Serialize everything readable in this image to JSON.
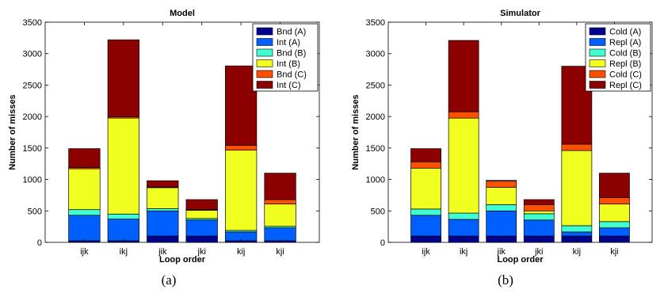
{
  "captions": [
    "(a)",
    "(b)"
  ],
  "colors": [
    "#00008f",
    "#0060ff",
    "#40ffd0",
    "#f0ff20",
    "#ff5000",
    "#8c0000"
  ],
  "chart_data": [
    {
      "type": "bar",
      "stacked": true,
      "title": "Model",
      "xlabel": "Loop order",
      "ylabel": "Number of misses",
      "ylim": [
        0,
        3500
      ],
      "yticks": [
        "0",
        "500",
        "1000",
        "1500",
        "2000",
        "2500",
        "3000",
        "3500"
      ],
      "categories": [
        "ijk",
        "ikj",
        "jik",
        "jki",
        "kij",
        "kji"
      ],
      "legend_position": "top-right",
      "grid": false,
      "series": [
        {
          "name": "Bnd (A)",
          "values": [
            25,
            25,
            100,
            100,
            25,
            25
          ]
        },
        {
          "name": "Int (A)",
          "values": [
            405,
            345,
            400,
            255,
            140,
            205
          ]
        },
        {
          "name": "Bnd (B)",
          "values": [
            90,
            80,
            35,
            25,
            25,
            25
          ]
        },
        {
          "name": "Int (B)",
          "values": [
            650,
            1525,
            335,
            130,
            1275,
            355
          ]
        },
        {
          "name": "Bnd (C)",
          "values": [
            20,
            20,
            10,
            10,
            75,
            70
          ]
        },
        {
          "name": "Int (C)",
          "values": [
            300,
            1225,
            100,
            160,
            1265,
            420
          ]
        }
      ]
    },
    {
      "type": "bar",
      "stacked": true,
      "title": "Simulator",
      "xlabel": "Loop order",
      "ylabel": "Number of misses",
      "ylim": [
        0,
        3500
      ],
      "yticks": [
        "0",
        "500",
        "1000",
        "1500",
        "2000",
        "2500",
        "3000",
        "3500"
      ],
      "categories": [
        "ijk",
        "ikj",
        "jik",
        "jki",
        "kij",
        "kji"
      ],
      "legend_position": "top-right",
      "grid": false,
      "series": [
        {
          "name": "Cold (A)",
          "values": [
            100,
            100,
            100,
            100,
            100,
            100
          ]
        },
        {
          "name": "Repl (A)",
          "values": [
            330,
            265,
            400,
            255,
            65,
            130
          ]
        },
        {
          "name": "Cold (B)",
          "values": [
            100,
            100,
            100,
            100,
            100,
            100
          ]
        },
        {
          "name": "Repl (B)",
          "values": [
            650,
            1510,
            275,
            45,
            1195,
            280
          ]
        },
        {
          "name": "Cold (C)",
          "values": [
            100,
            100,
            100,
            100,
            100,
            100
          ]
        },
        {
          "name": "Repl (C)",
          "values": [
            210,
            1135,
            10,
            80,
            1240,
            390
          ]
        }
      ]
    }
  ]
}
